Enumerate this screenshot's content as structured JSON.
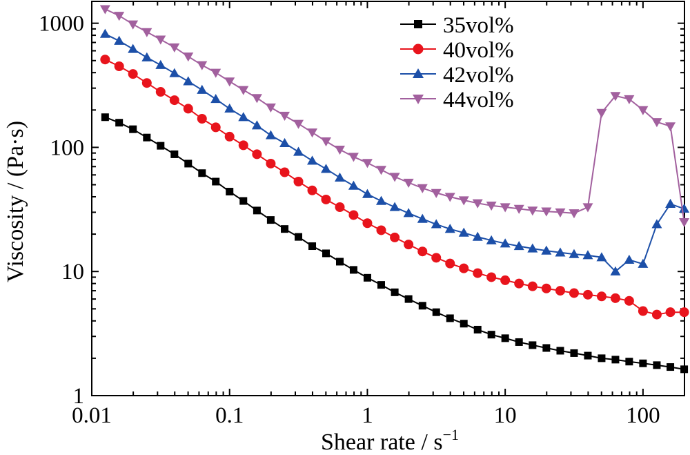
{
  "chart_data": {
    "type": "line",
    "xlabel": "Shear rate / s",
    "xlabel_sup": "−1",
    "ylabel": "Viscosity / (Pa·s)",
    "xscale": "log",
    "yscale": "log",
    "xlim": [
      0.01,
      200
    ],
    "ylim": [
      1,
      1500
    ],
    "xticks": [
      0.01,
      0.1,
      1,
      10,
      100
    ],
    "xtick_labels": [
      "0.01",
      "0.1",
      "1",
      "10",
      "100"
    ],
    "yticks": [
      1,
      10,
      100,
      1000
    ],
    "ytick_labels": [
      "1",
      "10",
      "100",
      "1000"
    ],
    "legend_position": "top-right",
    "grid": false,
    "series": [
      {
        "name": "35vol%",
        "color": "#000000",
        "marker": "square",
        "x": [
          0.0125,
          0.0158,
          0.0199,
          0.0251,
          0.0316,
          0.0398,
          0.0501,
          0.0631,
          0.0794,
          0.1,
          0.126,
          0.158,
          0.199,
          0.251,
          0.316,
          0.398,
          0.501,
          0.631,
          0.794,
          1.0,
          1.26,
          1.58,
          1.99,
          2.51,
          3.16,
          3.98,
          5.01,
          6.31,
          7.94,
          10.0,
          12.6,
          15.8,
          19.9,
          25.1,
          31.6,
          39.8,
          50.1,
          63.1,
          79.4,
          100,
          126,
          158,
          199
        ],
        "y": [
          175,
          158,
          140,
          120,
          103,
          88,
          74,
          62,
          53,
          44,
          37,
          31,
          26,
          22,
          19,
          16,
          14,
          12,
          10.3,
          8.9,
          7.8,
          6.8,
          6.0,
          5.3,
          4.7,
          4.2,
          3.8,
          3.4,
          3.1,
          2.9,
          2.7,
          2.55,
          2.42,
          2.3,
          2.2,
          2.1,
          2.0,
          1.95,
          1.88,
          1.82,
          1.76,
          1.7,
          1.63
        ]
      },
      {
        "name": "40vol%",
        "color": "#e8141c",
        "marker": "circle",
        "x": [
          0.0125,
          0.0158,
          0.0199,
          0.0251,
          0.0316,
          0.0398,
          0.0501,
          0.0631,
          0.0794,
          0.1,
          0.126,
          0.158,
          0.199,
          0.251,
          0.316,
          0.398,
          0.501,
          0.631,
          0.794,
          1.0,
          1.26,
          1.58,
          1.99,
          2.51,
          3.16,
          3.98,
          5.01,
          6.31,
          7.94,
          10.0,
          12.6,
          15.8,
          19.9,
          25.1,
          31.6,
          39.8,
          50.1,
          63.1,
          79.4,
          100,
          126,
          158,
          199
        ],
        "y": [
          510,
          450,
          390,
          330,
          280,
          240,
          205,
          170,
          145,
          122,
          104,
          88,
          74,
          63,
          53,
          45,
          38,
          33,
          28.5,
          24.5,
          21.5,
          18.8,
          16.5,
          14.5,
          12.9,
          11.6,
          10.6,
          9.7,
          9.0,
          8.5,
          8.0,
          7.6,
          7.3,
          7.0,
          6.7,
          6.5,
          6.3,
          6.1,
          5.8,
          4.8,
          4.5,
          4.7,
          4.7
        ]
      },
      {
        "name": "42vol%",
        "color": "#1c4fa8",
        "marker": "triangle-up",
        "x": [
          0.0125,
          0.0158,
          0.0199,
          0.0251,
          0.0316,
          0.0398,
          0.0501,
          0.0631,
          0.0794,
          0.1,
          0.126,
          0.158,
          0.199,
          0.251,
          0.316,
          0.398,
          0.501,
          0.631,
          0.794,
          1.0,
          1.26,
          1.58,
          1.99,
          2.51,
          3.16,
          3.98,
          5.01,
          6.31,
          7.94,
          10.0,
          12.6,
          15.8,
          19.9,
          25.1,
          31.6,
          39.8,
          50.1,
          63.1,
          79.4,
          100,
          126,
          158,
          199
        ],
        "y": [
          820,
          720,
          620,
          530,
          460,
          395,
          340,
          290,
          245,
          205,
          175,
          150,
          125,
          108,
          92,
          78,
          67,
          57,
          49,
          42,
          37,
          33,
          29.5,
          26.5,
          24,
          22,
          20.5,
          19,
          17.8,
          16.8,
          16,
          15.3,
          14.7,
          14.2,
          13.8,
          13.5,
          13,
          10,
          12.4,
          11.5,
          24,
          35,
          32
        ]
      },
      {
        "name": "44vol%",
        "color": "#a2609e",
        "marker": "triangle-down",
        "x": [
          0.0125,
          0.0158,
          0.0199,
          0.0251,
          0.0316,
          0.0398,
          0.0501,
          0.0631,
          0.0794,
          0.1,
          0.126,
          0.158,
          0.199,
          0.251,
          0.316,
          0.398,
          0.501,
          0.631,
          0.794,
          1.0,
          1.26,
          1.58,
          1.99,
          2.51,
          3.16,
          3.98,
          5.01,
          6.31,
          7.94,
          10.0,
          12.6,
          15.8,
          19.9,
          25.1,
          31.6,
          39.8,
          50.1,
          63.1,
          79.4,
          100,
          126,
          158,
          199
        ],
        "y": [
          1300,
          1150,
          980,
          850,
          740,
          640,
          540,
          460,
          400,
          340,
          290,
          250,
          210,
          180,
          155,
          132,
          112,
          96,
          84,
          75,
          66,
          58,
          52,
          47,
          43,
          40,
          37.5,
          35.5,
          34,
          33,
          32,
          31,
          30.5,
          30,
          29.5,
          33,
          190,
          260,
          245,
          200,
          160,
          148,
          25
        ]
      }
    ]
  }
}
